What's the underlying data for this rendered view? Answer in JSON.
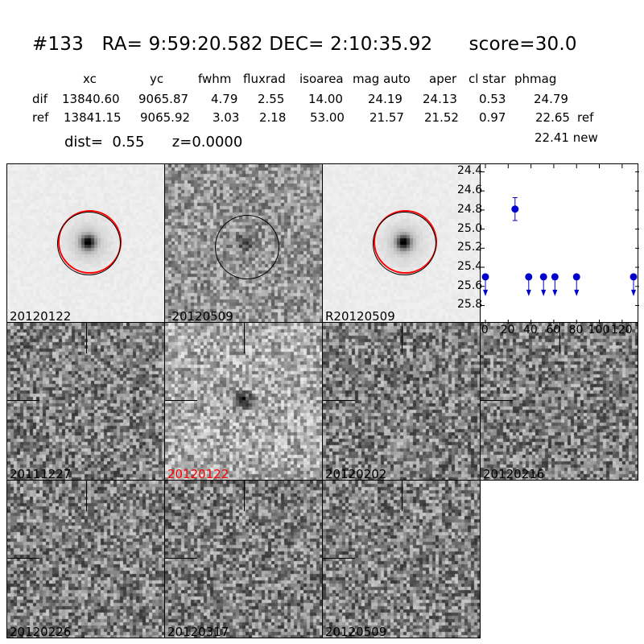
{
  "header": {
    "title": "#133   RA= 9:59:20.582 DEC= 2:10:35.92      score=30.0",
    "columns": [
      "xc",
      "yc",
      "fwhm",
      "fluxrad",
      "isoarea",
      "mag auto",
      "aper",
      "cl star",
      "phmag"
    ],
    "rows": [
      {
        "label": "dif",
        "values": [
          "13840.60",
          "9065.87",
          "4.79",
          "2.55",
          "14.00",
          "24.19",
          "24.13",
          "0.53",
          "24.79"
        ],
        "suffix": ""
      },
      {
        "label": "ref",
        "values": [
          "13841.15",
          "9065.92",
          "3.03",
          "2.18",
          "53.00",
          "21.57",
          "21.52",
          "0.97",
          "22.65"
        ],
        "suffix": "ref"
      }
    ],
    "extra": "22.41 new",
    "dist": "dist=  0.55      z=0.0000"
  },
  "stamps": [
    {
      "label": "20120122",
      "red": false
    },
    {
      "label": "-20120509",
      "red": false
    },
    {
      "label": "R20120509",
      "red": false
    },
    {
      "label": "20111227",
      "red": false
    },
    {
      "label": "20120122",
      "red": true
    },
    {
      "label": "20120202",
      "red": false
    },
    {
      "label": "20120216",
      "red": false
    },
    {
      "label": "20120226",
      "red": false
    },
    {
      "label": "20120317",
      "red": false
    },
    {
      "label": "20120509",
      "red": false
    }
  ],
  "colors": {
    "points": "#0000cc",
    "ring_red": "#ff0000",
    "ring_black": "#000000",
    "label_red": "#ff0000"
  },
  "chart_data": {
    "type": "scatter",
    "title": "",
    "xlabel": "",
    "ylabel": "",
    "y_inverted": true,
    "xlim": [
      0,
      130
    ],
    "ylim": [
      25.99,
      24.32
    ],
    "xticks": [
      0,
      20,
      40,
      60,
      80,
      100,
      120
    ],
    "yticks": [
      24.4,
      24.6,
      24.8,
      25.0,
      25.2,
      25.4,
      25.6,
      25.8
    ],
    "detections": [
      {
        "x": 26,
        "y": 24.79,
        "err": 0.12
      }
    ],
    "upper_limits": [
      {
        "x": 0,
        "y": 25.5
      },
      {
        "x": 38,
        "y": 25.5
      },
      {
        "x": 51,
        "y": 25.5
      },
      {
        "x": 61,
        "y": 25.5
      },
      {
        "x": 80,
        "y": 25.5
      },
      {
        "x": 130,
        "y": 25.5
      }
    ]
  }
}
